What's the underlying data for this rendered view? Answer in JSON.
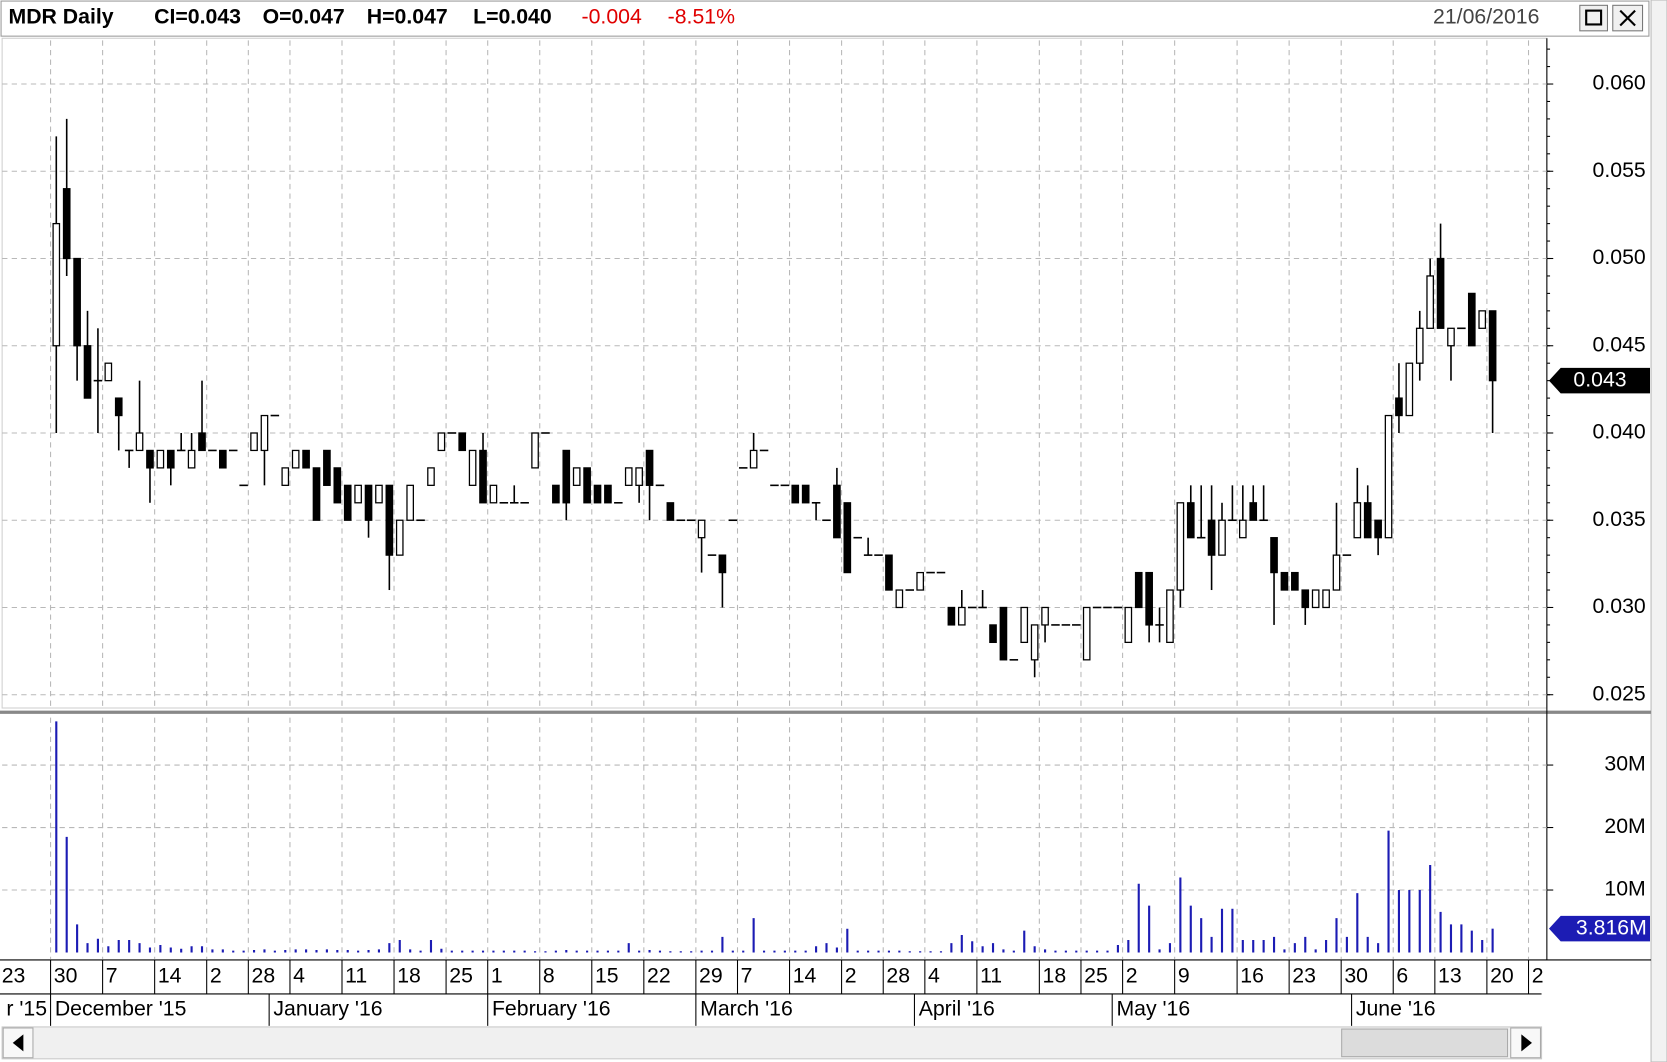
{
  "chart_data": {
    "type": "candlestick",
    "title": "MDR Daily",
    "header_fields": [
      "CI=0.043",
      "O=0.047",
      "H=0.047",
      "L=0.040"
    ],
    "change": "-0.004",
    "change_pct": "-8.51%",
    "change_color": "#e00000",
    "date": "21/06/2016",
    "up_color": "#ffffff",
    "down_color": "#000000",
    "volume_color": "#1c1cb4",
    "grid": true,
    "categories": [
      "23",
      null,
      null,
      null,
      null,
      "30",
      null,
      null,
      null,
      null,
      "7",
      null,
      null,
      null,
      null,
      "14",
      null,
      null,
      null,
      null,
      "2",
      null,
      null,
      null,
      "28",
      null,
      null,
      null,
      "4",
      null,
      null,
      null,
      null,
      "11",
      null,
      null,
      null,
      null,
      "18",
      null,
      null,
      null,
      null,
      "25",
      null,
      null,
      null,
      "1",
      null,
      null,
      null,
      null,
      "8",
      null,
      null,
      null,
      null,
      "15",
      null,
      null,
      null,
      null,
      "22",
      null,
      null,
      null,
      null,
      "29",
      null,
      null,
      null,
      "7",
      null,
      null,
      null,
      null,
      "14",
      null,
      null,
      null,
      null,
      "2",
      null,
      null,
      null,
      "28",
      null,
      null,
      null,
      "4",
      null,
      null,
      null,
      null,
      "11",
      null,
      null,
      null,
      null,
      null,
      "18",
      null,
      null,
      null,
      "25",
      null,
      null,
      null,
      "2",
      null,
      null,
      null,
      null,
      "9",
      null,
      null,
      null,
      null,
      null,
      "16",
      null,
      null,
      null,
      null,
      "23",
      null,
      null,
      null,
      null,
      "30",
      null,
      null,
      null,
      null,
      "6",
      null,
      null,
      null,
      "13",
      null,
      null,
      null,
      null,
      "20",
      null,
      null,
      null,
      "2"
    ],
    "month_labels": [
      "r '15",
      "December '15",
      "January '16",
      "February '16",
      "March '16",
      "April '16",
      "May '16",
      "June '16"
    ],
    "open": [
      null,
      null,
      null,
      null,
      null,
      0.045,
      0.054,
      0.05,
      0.045,
      0.043,
      0.043,
      0.042,
      0.039,
      0.039,
      0.039,
      0.038,
      0.039,
      0.039,
      0.038,
      0.04,
      0.039,
      0.039,
      0.039,
      0.037,
      0.039,
      0.039,
      0.041,
      0.037,
      0.038,
      0.039,
      0.038,
      0.039,
      0.038,
      0.037,
      0.036,
      0.037,
      0.036,
      0.037,
      0.033,
      0.035,
      0.035,
      0.037,
      0.039,
      0.04,
      0.04,
      0.037,
      0.039,
      0.036,
      0.036,
      0.036,
      0.036,
      0.038,
      0.04,
      0.037,
      0.039,
      0.037,
      0.038,
      0.037,
      0.037,
      0.036,
      0.037,
      0.037,
      0.039,
      0.037,
      0.036,
      0.035,
      0.035,
      0.034,
      0.033,
      0.033,
      0.035,
      0.038,
      0.038,
      0.039,
      0.037,
      0.037,
      0.037,
      0.037,
      0.036,
      0.035,
      0.037,
      0.036,
      0.034,
      0.033,
      0.033,
      0.033,
      0.03,
      0.031,
      0.031,
      0.032,
      0.032,
      0.03,
      0.029,
      0.03,
      0.03,
      0.029,
      0.03,
      0.027,
      0.028,
      0.027,
      0.029,
      0.029,
      0.029,
      0.029,
      0.027,
      0.03,
      0.03,
      0.03,
      0.028,
      0.032,
      0.032,
      0.029,
      0.028,
      0.031,
      0.036,
      0.034,
      0.035,
      0.033,
      0.035,
      0.034,
      0.036,
      0.035,
      0.034,
      0.032,
      0.032,
      0.031,
      0.03,
      0.03,
      0.031,
      0.033,
      0.034,
      0.036,
      0.035,
      0.034,
      0.042,
      0.041,
      0.044,
      0.046,
      0.05,
      0.045,
      0.046,
      0.048,
      0.046,
      0.047,
      null,
      null,
      null,
      null
    ],
    "high": [
      null,
      null,
      null,
      null,
      null,
      0.057,
      0.058,
      0.05,
      0.047,
      0.046,
      0.044,
      0.042,
      0.039,
      0.043,
      0.039,
      0.039,
      0.039,
      0.04,
      0.04,
      0.043,
      0.039,
      0.039,
      0.039,
      0.037,
      0.04,
      0.041,
      0.041,
      0.038,
      0.039,
      0.039,
      0.038,
      0.039,
      0.038,
      0.037,
      0.037,
      0.037,
      0.037,
      0.037,
      0.035,
      0.037,
      0.035,
      0.038,
      0.04,
      0.04,
      0.04,
      0.039,
      0.04,
      0.037,
      0.036,
      0.037,
      0.036,
      0.04,
      0.04,
      0.037,
      0.039,
      0.038,
      0.038,
      0.037,
      0.037,
      0.036,
      0.038,
      0.038,
      0.039,
      0.037,
      0.036,
      0.035,
      0.035,
      0.035,
      0.033,
      0.033,
      0.035,
      0.038,
      0.04,
      0.039,
      0.037,
      0.037,
      0.037,
      0.037,
      0.036,
      0.035,
      0.038,
      0.036,
      0.034,
      0.034,
      0.033,
      0.033,
      0.031,
      0.031,
      0.032,
      0.032,
      0.032,
      0.03,
      0.031,
      0.03,
      0.031,
      0.029,
      0.03,
      0.027,
      0.03,
      0.029,
      0.03,
      0.029,
      0.029,
      0.029,
      0.03,
      0.03,
      0.03,
      0.03,
      0.03,
      0.032,
      0.032,
      0.03,
      0.031,
      0.036,
      0.037,
      0.037,
      0.037,
      0.036,
      0.037,
      0.037,
      0.037,
      0.037,
      0.034,
      0.032,
      0.032,
      0.031,
      0.031,
      0.031,
      0.036,
      0.033,
      0.038,
      0.037,
      0.035,
      0.041,
      0.044,
      0.044,
      0.047,
      0.05,
      0.052,
      0.046,
      0.046,
      0.048,
      0.047,
      0.047,
      null,
      null,
      null,
      null
    ],
    "low": [
      null,
      null,
      null,
      null,
      null,
      0.04,
      0.049,
      0.043,
      0.042,
      0.04,
      0.043,
      0.039,
      0.038,
      0.039,
      0.036,
      0.038,
      0.037,
      0.039,
      0.038,
      0.039,
      0.039,
      0.038,
      0.039,
      0.037,
      0.039,
      0.037,
      0.041,
      0.037,
      0.038,
      0.038,
      0.035,
      0.037,
      0.036,
      0.035,
      0.036,
      0.034,
      0.036,
      0.031,
      0.033,
      0.035,
      0.035,
      0.037,
      0.039,
      0.04,
      0.039,
      0.037,
      0.036,
      0.036,
      0.036,
      0.036,
      0.036,
      0.038,
      0.04,
      0.036,
      0.035,
      0.037,
      0.036,
      0.036,
      0.036,
      0.036,
      0.037,
      0.036,
      0.035,
      0.037,
      0.035,
      0.035,
      0.035,
      0.032,
      0.033,
      0.03,
      0.035,
      0.038,
      0.038,
      0.039,
      0.037,
      0.037,
      0.036,
      0.036,
      0.035,
      0.035,
      0.034,
      0.032,
      0.034,
      0.033,
      0.033,
      0.031,
      0.03,
      0.031,
      0.031,
      0.032,
      0.032,
      0.029,
      0.029,
      0.03,
      0.03,
      0.028,
      0.027,
      0.027,
      0.028,
      0.026,
      0.028,
      0.029,
      0.029,
      0.029,
      0.027,
      0.03,
      0.03,
      0.03,
      0.028,
      0.03,
      0.028,
      0.028,
      0.028,
      0.03,
      0.034,
      0.034,
      0.031,
      0.033,
      0.035,
      0.034,
      0.035,
      0.035,
      0.029,
      0.031,
      0.031,
      0.029,
      0.03,
      0.03,
      0.031,
      0.033,
      0.034,
      0.034,
      0.033,
      0.034,
      0.04,
      0.041,
      0.043,
      0.046,
      0.046,
      0.043,
      0.046,
      0.045,
      0.046,
      0.04,
      null,
      null,
      null,
      null
    ],
    "close": [
      null,
      null,
      null,
      null,
      null,
      0.052,
      0.05,
      0.045,
      0.042,
      0.043,
      0.044,
      0.041,
      0.039,
      0.04,
      0.038,
      0.039,
      0.038,
      0.039,
      0.039,
      0.039,
      0.039,
      0.038,
      0.039,
      0.037,
      0.04,
      0.041,
      0.041,
      0.038,
      0.039,
      0.038,
      0.035,
      0.037,
      0.036,
      0.035,
      0.037,
      0.035,
      0.037,
      0.033,
      0.035,
      0.037,
      0.035,
      0.038,
      0.04,
      0.04,
      0.039,
      0.039,
      0.036,
      0.037,
      0.036,
      0.036,
      0.036,
      0.04,
      0.04,
      0.036,
      0.036,
      0.038,
      0.036,
      0.036,
      0.036,
      0.036,
      0.038,
      0.038,
      0.037,
      0.037,
      0.035,
      0.035,
      0.035,
      0.035,
      0.033,
      0.032,
      0.035,
      0.038,
      0.039,
      0.039,
      0.037,
      0.037,
      0.036,
      0.036,
      0.036,
      0.035,
      0.034,
      0.032,
      0.034,
      0.033,
      0.033,
      0.031,
      0.031,
      0.031,
      0.032,
      0.032,
      0.032,
      0.029,
      0.03,
      0.03,
      0.03,
      0.028,
      0.027,
      0.027,
      0.03,
      0.029,
      0.03,
      0.029,
      0.029,
      0.029,
      0.03,
      0.03,
      0.03,
      0.03,
      0.03,
      0.03,
      0.029,
      0.029,
      0.031,
      0.036,
      0.034,
      0.034,
      0.033,
      0.035,
      0.035,
      0.035,
      0.035,
      0.035,
      0.032,
      0.031,
      0.031,
      0.03,
      0.031,
      0.031,
      0.033,
      0.033,
      0.036,
      0.034,
      0.034,
      0.041,
      0.041,
      0.044,
      0.046,
      0.049,
      0.046,
      0.046,
      0.046,
      0.045,
      0.047,
      0.043,
      null,
      null,
      null,
      null
    ],
    "volume": [
      null,
      null,
      null,
      null,
      null,
      37000000,
      18500000,
      4500000,
      1500000,
      2200000,
      1000000,
      2000000,
      2000000,
      1500000,
      800000,
      1200000,
      800000,
      600000,
      1000000,
      1000000,
      500000,
      500000,
      300000,
      300000,
      400000,
      500000,
      300000,
      400000,
      500000,
      500000,
      400000,
      500000,
      400000,
      400000,
      300000,
      400000,
      500000,
      1500000,
      2000000,
      500000,
      300000,
      2000000,
      600000,
      300000,
      300000,
      300000,
      300000,
      300000,
      300000,
      300000,
      300000,
      200000,
      200000,
      300000,
      400000,
      300000,
      300000,
      300000,
      300000,
      300000,
      1500000,
      300000,
      400000,
      300000,
      200000,
      200000,
      200000,
      300000,
      300000,
      2500000,
      300000,
      300000,
      5500000,
      300000,
      300000,
      300000,
      300000,
      300000,
      1000000,
      1500000,
      800000,
      3800000,
      300000,
      300000,
      300000,
      300000,
      300000,
      200000,
      200000,
      200000,
      200000,
      1500000,
      2800000,
      1800000,
      1000000,
      1500000,
      500000,
      300000,
      3500000,
      1000000,
      500000,
      300000,
      300000,
      300000,
      300000,
      300000,
      300000,
      1200000,
      2000000,
      11000000,
      7500000,
      500000,
      1500000,
      12000000,
      7500000,
      5500000,
      2500000,
      7000000,
      7000000,
      2000000,
      2000000,
      2000000,
      2500000,
      500000,
      1500000,
      2500000,
      500000,
      2000000,
      5500000,
      2500000,
      9500000,
      2500000,
      1500000,
      19500000,
      10000000,
      10000000,
      10000000,
      14000000,
      6500000,
      4500000,
      4500000,
      3500000,
      2000000,
      3816000,
      null,
      null,
      null,
      null
    ],
    "last_price_label": "0.043",
    "last_volume_label": "3.816M",
    "ylim": [
      0.0243,
      0.0625
    ],
    "yticks": [
      {
        "value": 0.025,
        "label": "0.025"
      },
      {
        "value": 0.03,
        "label": "0.030"
      },
      {
        "value": 0.035,
        "label": "0.035"
      },
      {
        "value": 0.04,
        "label": "0.040"
      },
      {
        "value": 0.045,
        "label": "0.045"
      },
      {
        "value": 0.05,
        "label": "0.050"
      },
      {
        "value": 0.055,
        "label": "0.055"
      },
      {
        "value": 0.06,
        "label": "0.060"
      }
    ],
    "y2lim": [
      0,
      37600000
    ],
    "y2ticks": [
      {
        "value": 10000000,
        "label": "10M"
      },
      {
        "value": 20000000,
        "label": "20M"
      },
      {
        "value": 30000000,
        "label": "30M"
      }
    ]
  }
}
